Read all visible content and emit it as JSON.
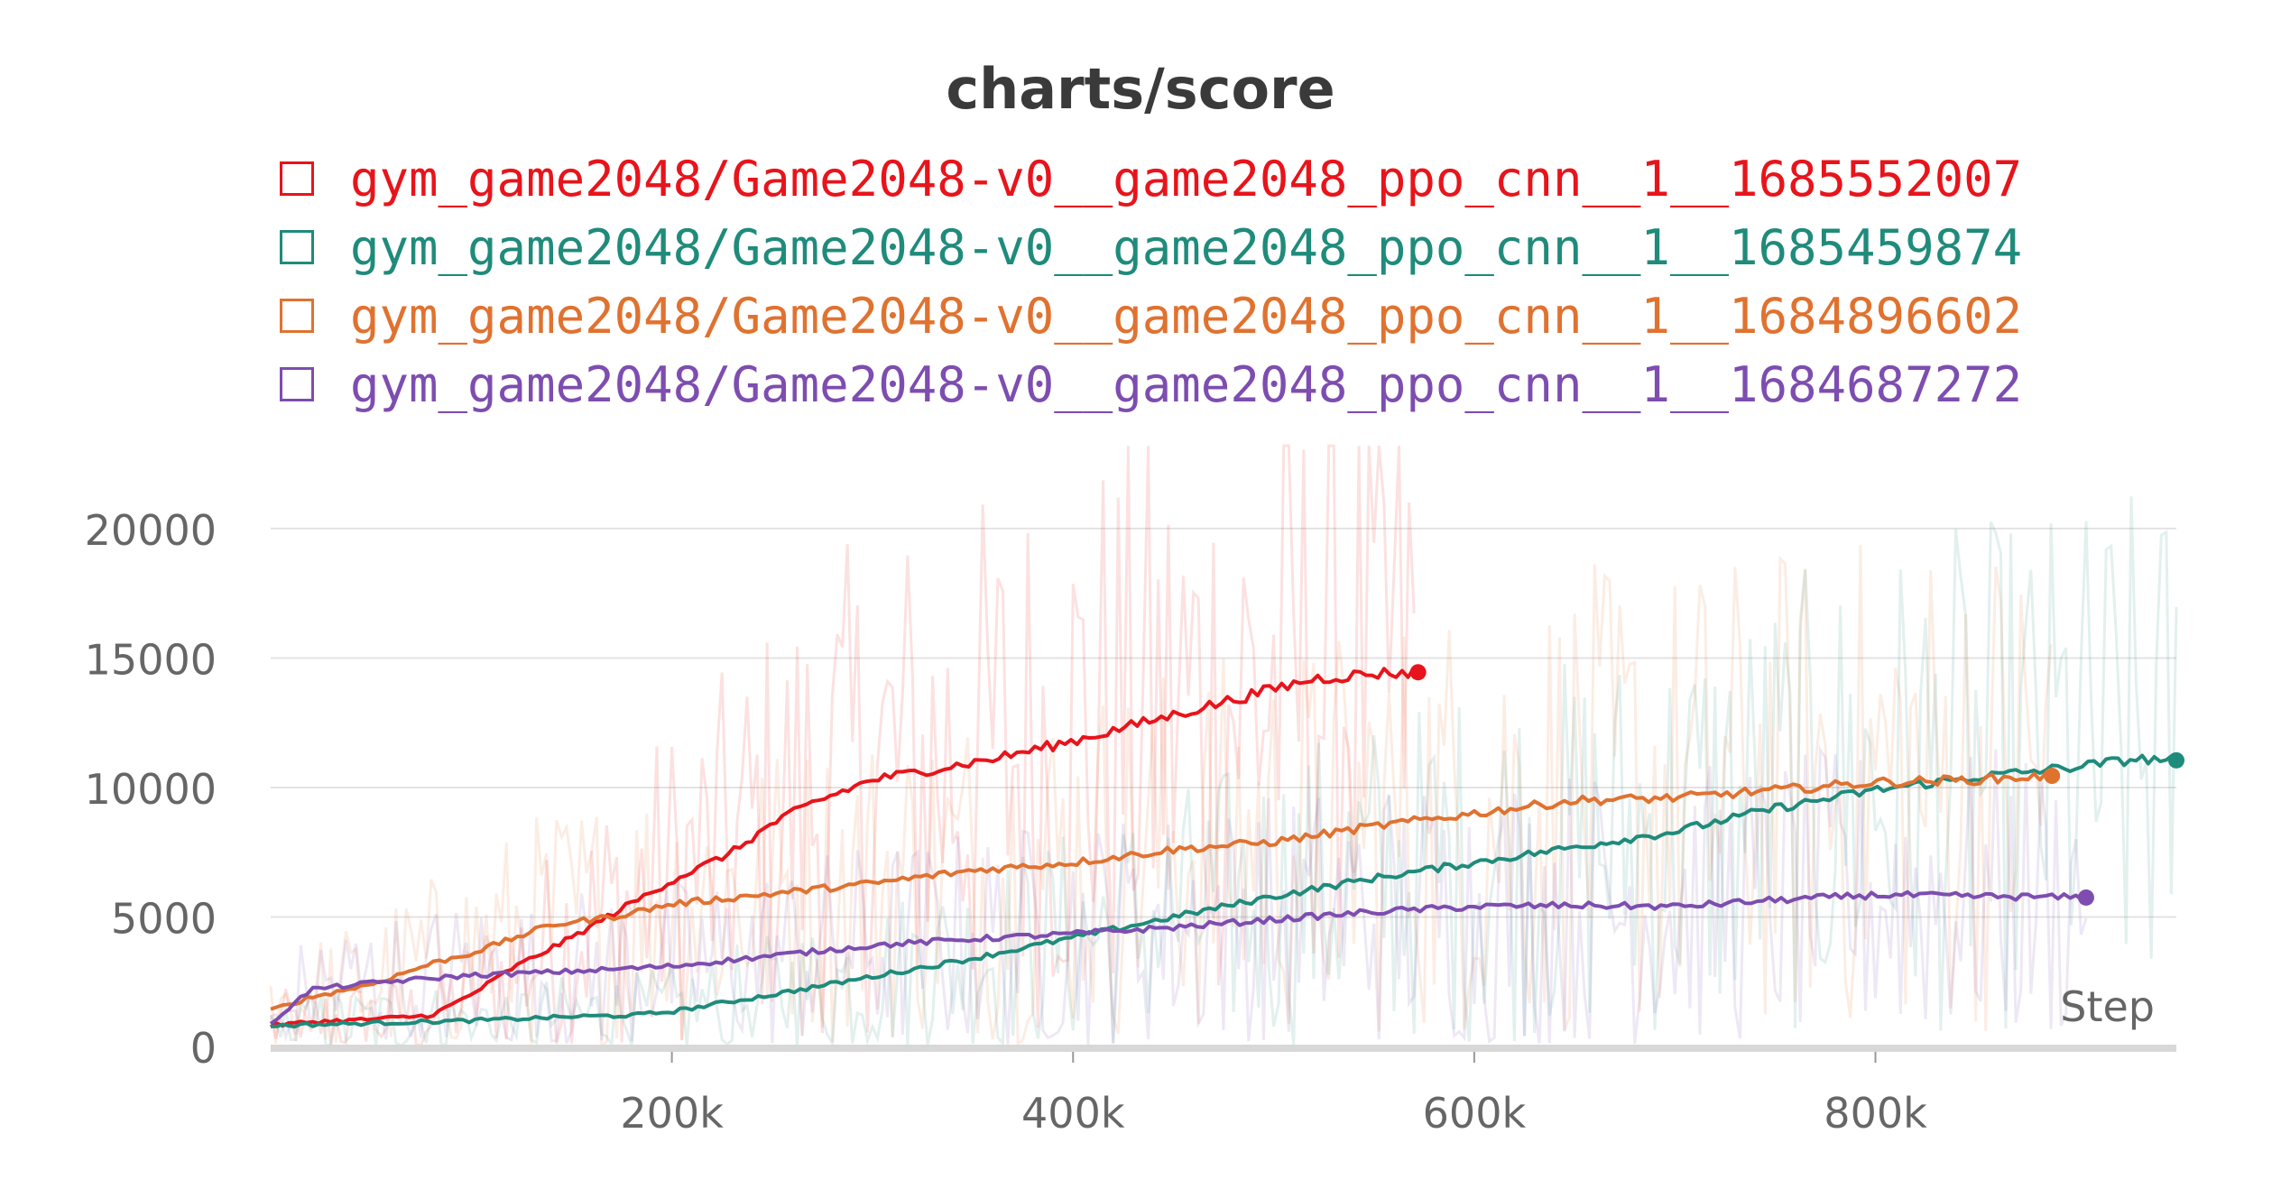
{
  "chart_data": {
    "type": "line",
    "title": "charts/score",
    "xlabel": "Step",
    "ylabel": "",
    "xlim": [
      0,
      950000
    ],
    "ylim": [
      0,
      20000
    ],
    "x_ticks": [
      200000,
      400000,
      600000,
      800000
    ],
    "x_tick_labels": [
      "200k",
      "400k",
      "600k",
      "800k"
    ],
    "y_ticks": [
      0,
      5000,
      10000,
      15000,
      20000
    ],
    "y_tick_labels": [
      "0",
      "5000",
      "10000",
      "15000",
      "20000"
    ],
    "grid": true,
    "legend_position": "top",
    "series": [
      {
        "name": "gym_game2048/Game2048-v0__game2048_ppo_cnn__1__1685552007",
        "color": "#e8141b",
        "end_point": [
          572000,
          14450
        ],
        "x": [
          0,
          20000,
          50000,
          80000,
          100000,
          120000,
          150000,
          170000,
          200000,
          230000,
          250000,
          270000,
          300000,
          330000,
          360000,
          400000,
          430000,
          460000,
          490000,
          520000,
          550000,
          572000
        ],
        "values": [
          800,
          950,
          1050,
          1200,
          2000,
          3000,
          4200,
          5100,
          6400,
          7500,
          8600,
          9400,
          10300,
          10700,
          11100,
          11800,
          12400,
          13000,
          13600,
          14200,
          14400,
          14450
        ]
      },
      {
        "name": "gym_game2048/Game2048-v0__game2048_ppo_cnn__1__1685459874",
        "color": "#1f8b7b",
        "end_point": [
          950000,
          11050
        ],
        "x": [
          0,
          100000,
          150000,
          180000,
          200000,
          250000,
          300000,
          350000,
          400000,
          450000,
          500000,
          550000,
          600000,
          650000,
          700000,
          750000,
          800000,
          850000,
          900000,
          930000,
          950000
        ],
        "values": [
          800,
          1000,
          1150,
          1200,
          1350,
          2000,
          2700,
          3400,
          4200,
          5000,
          5800,
          6500,
          7100,
          7700,
          8300,
          9200,
          9900,
          10400,
          10800,
          11100,
          11050
        ]
      },
      {
        "name": "gym_game2048/Game2048-v0__game2048_ppo_cnn__1__1684896602",
        "color": "#e07230",
        "end_point": [
          888000,
          10450
        ],
        "x": [
          0,
          20000,
          50000,
          80000,
          100000,
          140000,
          170000,
          200000,
          250000,
          300000,
          350000,
          400000,
          450000,
          500000,
          550000,
          600000,
          650000,
          700000,
          750000,
          800000,
          850000,
          888000
        ],
        "values": [
          1400,
          1900,
          2400,
          3200,
          3600,
          4700,
          5000,
          5500,
          5900,
          6300,
          6800,
          7100,
          7600,
          7900,
          8500,
          9000,
          9500,
          9600,
          9900,
          10200,
          10300,
          10450
        ]
      },
      {
        "name": "gym_game2048/Game2048-v0__game2048_ppo_cnn__1__1684687272",
        "color": "#7d4db0",
        "end_point": [
          905000,
          5750
        ],
        "x": [
          0,
          20000,
          50000,
          100000,
          150000,
          200000,
          250000,
          300000,
          350000,
          400000,
          450000,
          500000,
          550000,
          600000,
          650000,
          700000,
          750000,
          800000,
          850000,
          905000
        ],
        "values": [
          900,
          2200,
          2450,
          2750,
          2900,
          3100,
          3500,
          3900,
          4150,
          4350,
          4600,
          4900,
          5200,
          5400,
          5450,
          5400,
          5650,
          5850,
          5800,
          5750
        ]
      }
    ]
  }
}
